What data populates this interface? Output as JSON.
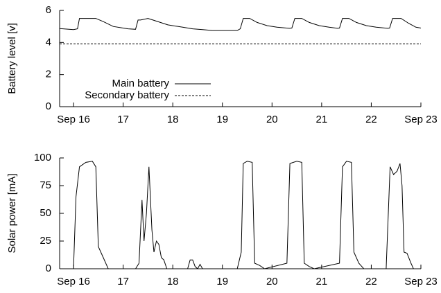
{
  "chart_data": [
    {
      "type": "line",
      "ylabel": "Battery level [v]",
      "x": [
        15.72,
        16.0,
        16.08,
        16.12,
        16.45,
        16.6,
        16.8,
        17.0,
        17.1,
        17.25,
        17.3,
        17.35,
        17.5,
        17.6,
        17.75,
        17.9,
        18.2,
        18.4,
        18.6,
        18.8,
        19.0,
        19.3,
        19.36,
        19.42,
        19.55,
        19.7,
        19.9,
        20.1,
        20.35,
        20.4,
        20.46,
        20.6,
        20.75,
        20.95,
        21.15,
        21.32,
        21.36,
        21.42,
        21.55,
        21.7,
        21.9,
        22.1,
        22.33,
        22.37,
        22.43,
        22.6,
        22.75,
        22.9,
        23.0
      ],
      "series": [
        {
          "name": "Main battery",
          "color": "#000000",
          "linestyle": "solid",
          "values": [
            4.87,
            4.8,
            4.85,
            5.5,
            5.5,
            5.3,
            5.0,
            4.9,
            4.85,
            4.82,
            5.4,
            5.4,
            5.5,
            5.4,
            5.25,
            5.1,
            4.95,
            4.85,
            4.8,
            4.75,
            4.75,
            4.75,
            4.85,
            5.5,
            5.5,
            5.25,
            5.05,
            4.95,
            4.88,
            4.9,
            5.5,
            5.5,
            5.25,
            5.05,
            4.95,
            4.88,
            4.9,
            5.5,
            5.5,
            5.25,
            5.05,
            4.95,
            4.88,
            4.9,
            5.5,
            5.5,
            5.2,
            4.95,
            4.9
          ]
        },
        {
          "name": "Secondary battery",
          "color": "#000000",
          "linestyle": "dashed",
          "values": [
            3.92,
            3.92,
            3.92,
            3.92,
            3.92,
            3.92,
            3.92,
            3.92,
            3.92,
            3.92,
            3.92,
            3.92,
            3.92,
            3.92,
            3.92,
            3.92,
            3.92,
            3.92,
            3.92,
            3.92,
            3.92,
            3.92,
            3.92,
            3.92,
            3.92,
            3.92,
            3.92,
            3.92,
            3.92,
            3.92,
            3.92,
            3.92,
            3.92,
            3.92,
            3.92,
            3.92,
            3.92,
            3.92,
            3.92,
            3.92,
            3.92,
            3.92,
            3.92,
            3.92,
            3.92,
            3.92,
            3.92,
            3.92,
            3.92
          ]
        }
      ],
      "xlim": [
        15.72,
        23
      ],
      "xticks": [
        {
          "value": 16,
          "label": "Sep 16"
        },
        17,
        18,
        19,
        20,
        21,
        22,
        {
          "value": 23,
          "label": "Sep 23"
        }
      ],
      "ylim": [
        0,
        6
      ],
      "yticks": [
        0,
        2,
        4,
        6
      ],
      "legend": "lower left"
    },
    {
      "type": "line",
      "ylabel": "Solar power [mA]",
      "x": [
        15.72,
        16.0,
        16.05,
        16.12,
        16.25,
        16.38,
        16.45,
        16.5,
        16.6,
        16.7,
        17.25,
        17.32,
        17.38,
        17.42,
        17.47,
        17.52,
        17.58,
        17.62,
        17.67,
        17.72,
        17.77,
        17.82,
        17.88,
        18.3,
        18.35,
        18.4,
        18.45,
        18.5,
        18.55,
        18.6,
        19.3,
        19.38,
        19.42,
        19.5,
        19.6,
        19.65,
        19.75,
        19.85,
        20.3,
        20.36,
        20.5,
        20.6,
        20.65,
        20.75,
        20.85,
        21.36,
        21.42,
        21.5,
        21.6,
        21.65,
        21.75,
        21.85,
        22.3,
        22.38,
        22.45,
        22.52,
        22.58,
        22.62,
        22.66,
        22.72,
        22.8,
        22.85,
        23.0
      ],
      "series": [
        {
          "name": "Solar power",
          "color": "#000000",
          "linestyle": "solid",
          "values": [
            0,
            0,
            65,
            92,
            96,
            97,
            92,
            20,
            10,
            0,
            0,
            5,
            62,
            25,
            50,
            92,
            35,
            15,
            25,
            22,
            10,
            8,
            0,
            0,
            8,
            8,
            2,
            0,
            4,
            0,
            0,
            15,
            95,
            97,
            96,
            5,
            3,
            0,
            5,
            95,
            97,
            96,
            5,
            2,
            0,
            5,
            92,
            97,
            96,
            15,
            5,
            0,
            0,
            92,
            85,
            88,
            95,
            75,
            15,
            14,
            5,
            0,
            0
          ]
        }
      ],
      "xlim": [
        15.72,
        23
      ],
      "xticks": [
        {
          "value": 16,
          "label": "Sep 16"
        },
        17,
        18,
        19,
        20,
        21,
        22,
        {
          "value": 23,
          "label": "Sep 23"
        }
      ],
      "ylim": [
        0,
        100
      ],
      "yticks": [
        0,
        25,
        50,
        75,
        100
      ]
    }
  ]
}
